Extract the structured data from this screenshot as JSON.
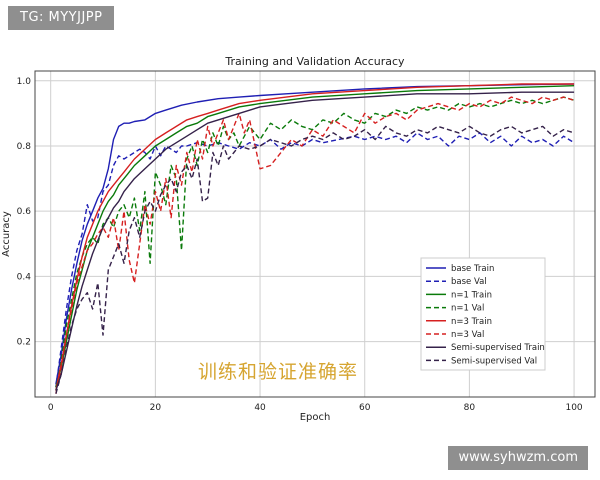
{
  "watermark_top": "TG: MYYJJPP",
  "watermark_bottom": "www.syhwzm.com",
  "caption": "训练和验证准确率",
  "colors": {
    "base": "#1f1fb4",
    "n1": "#0a7a0a",
    "n3": "#d62020",
    "semi": "#35224a",
    "grid": "#cfcfcf",
    "caption": "#d6a531"
  },
  "chart_data": {
    "type": "line",
    "title": "Training and Validation Accuracy",
    "xlabel": "Epoch",
    "ylabel": "Accuracy",
    "xlim": [
      -3,
      104
    ],
    "ylim": [
      0.03,
      1.03
    ],
    "xticks": [
      0,
      20,
      40,
      60,
      80,
      100
    ],
    "yticks": [
      0.2,
      0.4,
      0.6,
      0.8,
      1.0
    ],
    "ytick_labels": [
      "0.2",
      "0.4",
      "0.6",
      "0.8",
      "1.0"
    ],
    "grid": true,
    "legend_position": "lower-right",
    "series": [
      {
        "name": "base Train",
        "style": "solid",
        "color": "base",
        "x": [
          1,
          2,
          3,
          4,
          5,
          6,
          7,
          8,
          9,
          10,
          11,
          12,
          13,
          14,
          15,
          16,
          18,
          20,
          22,
          25,
          28,
          32,
          36,
          40,
          45,
          50,
          60,
          70,
          80,
          90,
          100
        ],
        "y": [
          0.07,
          0.16,
          0.27,
          0.36,
          0.44,
          0.51,
          0.56,
          0.6,
          0.64,
          0.67,
          0.73,
          0.82,
          0.86,
          0.87,
          0.87,
          0.875,
          0.88,
          0.9,
          0.91,
          0.925,
          0.935,
          0.945,
          0.95,
          0.955,
          0.96,
          0.965,
          0.975,
          0.982,
          0.985,
          0.988,
          0.99
        ]
      },
      {
        "name": "base Val",
        "style": "dashed",
        "color": "base",
        "x": [
          1,
          2,
          3,
          4,
          5,
          6,
          7,
          8,
          9,
          10,
          11,
          12,
          13,
          14,
          15,
          16,
          17,
          18,
          19,
          20,
          21,
          22,
          23,
          24,
          25,
          26,
          28,
          30,
          32,
          34,
          36,
          38,
          40,
          42,
          44,
          46,
          48,
          50,
          52,
          55,
          58,
          60,
          62,
          64,
          66,
          68,
          70,
          72,
          74,
          76,
          78,
          80,
          82,
          84,
          86,
          88,
          90,
          92,
          94,
          96,
          98,
          100
        ],
        "y": [
          0.06,
          0.18,
          0.3,
          0.4,
          0.48,
          0.53,
          0.62,
          0.57,
          0.58,
          0.66,
          0.68,
          0.74,
          0.77,
          0.76,
          0.77,
          0.78,
          0.79,
          0.78,
          0.76,
          0.8,
          0.77,
          0.8,
          0.79,
          0.78,
          0.8,
          0.8,
          0.81,
          0.8,
          0.81,
          0.8,
          0.79,
          0.81,
          0.8,
          0.82,
          0.79,
          0.81,
          0.8,
          0.82,
          0.81,
          0.82,
          0.83,
          0.82,
          0.83,
          0.82,
          0.83,
          0.81,
          0.84,
          0.82,
          0.83,
          0.8,
          0.83,
          0.82,
          0.84,
          0.81,
          0.83,
          0.8,
          0.83,
          0.81,
          0.82,
          0.8,
          0.83,
          0.81
        ]
      },
      {
        "name": "n=1 Train",
        "style": "solid",
        "color": "n1",
        "x": [
          1,
          2,
          3,
          4,
          5,
          6,
          7,
          8,
          9,
          10,
          11,
          12,
          13,
          14,
          15,
          16,
          18,
          20,
          22,
          24,
          26,
          28,
          30,
          32,
          36,
          40,
          45,
          50,
          60,
          70,
          80,
          90,
          100
        ],
        "y": [
          0.06,
          0.12,
          0.2,
          0.28,
          0.36,
          0.42,
          0.48,
          0.52,
          0.56,
          0.6,
          0.63,
          0.65,
          0.68,
          0.7,
          0.72,
          0.74,
          0.77,
          0.8,
          0.82,
          0.84,
          0.86,
          0.87,
          0.89,
          0.9,
          0.92,
          0.93,
          0.94,
          0.95,
          0.96,
          0.97,
          0.975,
          0.98,
          0.985
        ]
      },
      {
        "name": "n=1 Val",
        "style": "dashed",
        "color": "n1",
        "x": [
          1,
          2,
          3,
          4,
          5,
          6,
          7,
          8,
          9,
          10,
          11,
          12,
          13,
          14,
          15,
          16,
          17,
          18,
          19,
          20,
          21,
          22,
          23,
          24,
          25,
          26,
          27,
          28,
          29,
          30,
          31,
          32,
          33,
          34,
          35,
          36,
          38,
          40,
          42,
          44,
          46,
          48,
          50,
          52,
          54,
          56,
          58,
          60,
          62,
          64,
          66,
          68,
          70,
          72,
          74,
          76,
          78,
          80,
          82,
          84,
          86,
          88,
          90,
          92,
          94,
          96,
          98,
          100
        ],
        "y": [
          0.05,
          0.14,
          0.25,
          0.33,
          0.41,
          0.46,
          0.5,
          0.52,
          0.5,
          0.56,
          0.58,
          0.55,
          0.6,
          0.62,
          0.58,
          0.64,
          0.54,
          0.66,
          0.44,
          0.72,
          0.68,
          0.62,
          0.74,
          0.7,
          0.48,
          0.76,
          0.8,
          0.74,
          0.82,
          0.78,
          0.84,
          0.8,
          0.86,
          0.82,
          0.84,
          0.8,
          0.86,
          0.82,
          0.87,
          0.85,
          0.88,
          0.86,
          0.85,
          0.88,
          0.87,
          0.9,
          0.88,
          0.87,
          0.9,
          0.89,
          0.91,
          0.9,
          0.92,
          0.91,
          0.92,
          0.91,
          0.93,
          0.92,
          0.93,
          0.92,
          0.93,
          0.94,
          0.93,
          0.94,
          0.93,
          0.94,
          0.95,
          0.94
        ]
      },
      {
        "name": "n=3 Train",
        "style": "solid",
        "color": "n3",
        "x": [
          1,
          2,
          3,
          4,
          5,
          6,
          7,
          8,
          9,
          10,
          11,
          12,
          13,
          14,
          15,
          16,
          18,
          20,
          22,
          24,
          26,
          28,
          30,
          32,
          36,
          40,
          45,
          50,
          60,
          70,
          80,
          90,
          100
        ],
        "y": [
          0.05,
          0.13,
          0.22,
          0.31,
          0.39,
          0.46,
          0.52,
          0.56,
          0.6,
          0.63,
          0.66,
          0.68,
          0.7,
          0.72,
          0.74,
          0.76,
          0.79,
          0.82,
          0.84,
          0.86,
          0.88,
          0.89,
          0.9,
          0.91,
          0.93,
          0.94,
          0.95,
          0.96,
          0.97,
          0.98,
          0.985,
          0.99,
          0.99
        ]
      },
      {
        "name": "n=3 Val",
        "style": "dashed",
        "color": "n3",
        "x": [
          1,
          2,
          3,
          4,
          5,
          6,
          7,
          8,
          9,
          10,
          11,
          12,
          13,
          14,
          15,
          16,
          17,
          18,
          19,
          20,
          21,
          22,
          23,
          24,
          25,
          26,
          27,
          28,
          29,
          30,
          31,
          32,
          33,
          34,
          35,
          36,
          37,
          38,
          40,
          42,
          44,
          46,
          48,
          50,
          52,
          54,
          56,
          58,
          60,
          62,
          64,
          66,
          68,
          70,
          72,
          74,
          76,
          78,
          80,
          82,
          84,
          86,
          88,
          90,
          92,
          94,
          96,
          98,
          100
        ],
        "y": [
          0.04,
          0.12,
          0.22,
          0.3,
          0.38,
          0.43,
          0.48,
          0.5,
          0.53,
          0.55,
          0.52,
          0.58,
          0.48,
          0.6,
          0.45,
          0.38,
          0.5,
          0.62,
          0.56,
          0.66,
          0.6,
          0.7,
          0.58,
          0.74,
          0.68,
          0.78,
          0.72,
          0.82,
          0.76,
          0.86,
          0.8,
          0.84,
          0.88,
          0.82,
          0.86,
          0.9,
          0.84,
          0.88,
          0.73,
          0.74,
          0.78,
          0.82,
          0.8,
          0.85,
          0.83,
          0.88,
          0.86,
          0.84,
          0.9,
          0.87,
          0.89,
          0.9,
          0.88,
          0.91,
          0.92,
          0.93,
          0.92,
          0.91,
          0.93,
          0.92,
          0.94,
          0.93,
          0.95,
          0.94,
          0.93,
          0.95,
          0.94,
          0.95,
          0.94
        ]
      },
      {
        "name": "Semi-supervised Train",
        "style": "solid",
        "color": "semi",
        "x": [
          1,
          2,
          3,
          4,
          5,
          6,
          7,
          8,
          9,
          10,
          11,
          12,
          13,
          14,
          15,
          16,
          18,
          20,
          22,
          24,
          26,
          28,
          30,
          32,
          36,
          40,
          45,
          50,
          60,
          70,
          80,
          90,
          100
        ],
        "y": [
          0.05,
          0.1,
          0.17,
          0.24,
          0.31,
          0.37,
          0.42,
          0.47,
          0.51,
          0.55,
          0.58,
          0.61,
          0.63,
          0.66,
          0.68,
          0.7,
          0.73,
          0.76,
          0.79,
          0.81,
          0.83,
          0.85,
          0.87,
          0.88,
          0.9,
          0.92,
          0.93,
          0.94,
          0.95,
          0.96,
          0.96,
          0.965,
          0.965
        ]
      },
      {
        "name": "Semi-supervised Val",
        "style": "dashed",
        "color": "semi",
        "x": [
          1,
          2,
          3,
          4,
          5,
          6,
          7,
          8,
          9,
          10,
          11,
          12,
          13,
          14,
          15,
          16,
          17,
          18,
          19,
          20,
          21,
          22,
          23,
          24,
          25,
          26,
          27,
          28,
          29,
          30,
          31,
          32,
          33,
          34,
          35,
          36,
          38,
          40,
          42,
          44,
          46,
          48,
          50,
          52,
          54,
          56,
          58,
          60,
          62,
          64,
          66,
          68,
          70,
          72,
          74,
          76,
          78,
          80,
          82,
          84,
          86,
          88,
          90,
          92,
          94,
          96,
          98,
          100
        ],
        "y": [
          0.04,
          0.1,
          0.18,
          0.25,
          0.3,
          0.33,
          0.35,
          0.3,
          0.38,
          0.22,
          0.42,
          0.46,
          0.5,
          0.44,
          0.54,
          0.58,
          0.52,
          0.6,
          0.63,
          0.6,
          0.65,
          0.68,
          0.7,
          0.66,
          0.72,
          0.74,
          0.7,
          0.76,
          0.63,
          0.64,
          0.78,
          0.74,
          0.8,
          0.76,
          0.78,
          0.8,
          0.79,
          0.8,
          0.82,
          0.81,
          0.8,
          0.82,
          0.83,
          0.82,
          0.84,
          0.82,
          0.83,
          0.85,
          0.82,
          0.86,
          0.84,
          0.83,
          0.85,
          0.84,
          0.86,
          0.85,
          0.84,
          0.86,
          0.84,
          0.83,
          0.85,
          0.86,
          0.84,
          0.85,
          0.86,
          0.83,
          0.85,
          0.84
        ]
      }
    ]
  }
}
